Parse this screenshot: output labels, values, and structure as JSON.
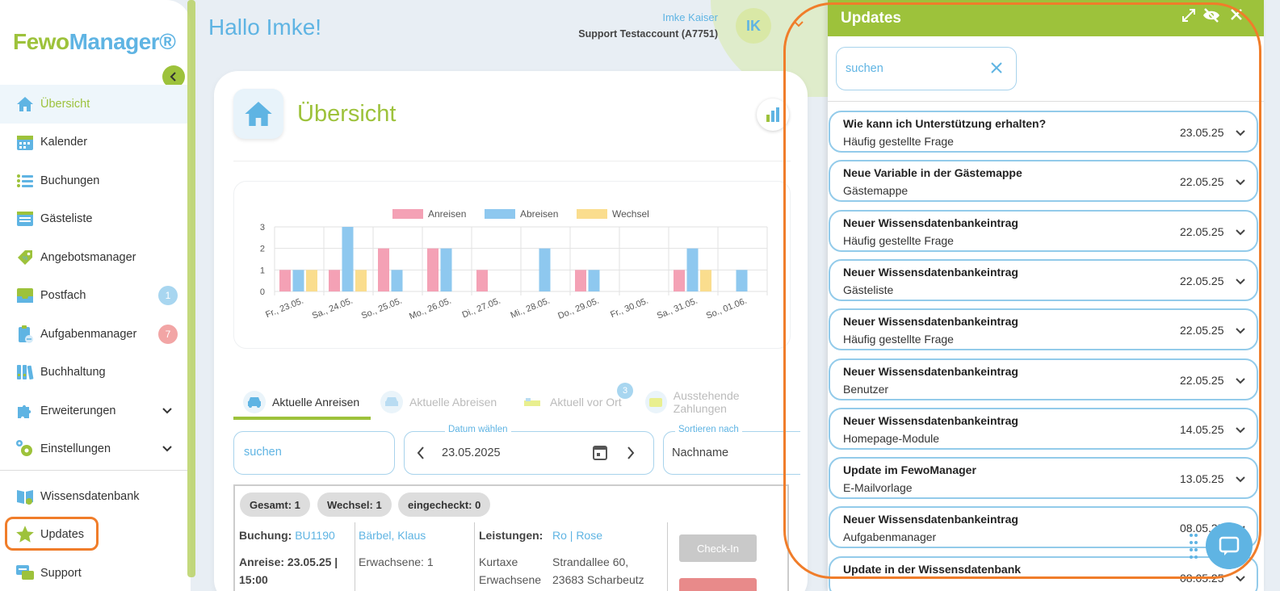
{
  "app": {
    "logo_part1": "Fewo",
    "logo_part2": "Manager®"
  },
  "sidebar": {
    "items": [
      {
        "label": "Übersicht",
        "icon": "home-icon"
      },
      {
        "label": "Kalender",
        "icon": "calendar-icon"
      },
      {
        "label": "Buchungen",
        "icon": "list-icon"
      },
      {
        "label": "Gästeliste",
        "icon": "guestlist-icon"
      },
      {
        "label": "Angebotsmanager",
        "icon": "tag-icon"
      },
      {
        "label": "Postfach",
        "icon": "inbox-icon",
        "badge": "1",
        "badge_color": "#a8d6f0"
      },
      {
        "label": "Aufgabenmanager",
        "icon": "clipboard-icon",
        "badge": "7",
        "badge_color": "#f2a5a5"
      },
      {
        "label": "Buchhaltung",
        "icon": "binders-icon"
      },
      {
        "label": "Erweiterungen",
        "icon": "puzzle-icon"
      },
      {
        "label": "Einstellungen",
        "icon": "gears-icon"
      },
      {
        "label": "Wissensdatenbank",
        "icon": "book-icon"
      },
      {
        "label": "Updates",
        "icon": "star-icon"
      },
      {
        "label": "Support",
        "icon": "chat-icon"
      }
    ]
  },
  "header": {
    "greeting": "Hallo Imke!",
    "user_name": "Imke Kaiser",
    "account": "Support Testaccount (A7751)",
    "avatar_initials": "IK"
  },
  "main": {
    "title": "Übersicht",
    "tabs": [
      {
        "label": "Aktuelle Anreisen"
      },
      {
        "label": "Aktuelle Abreisen"
      },
      {
        "label": "Aktuell vor Ort",
        "badge": "3"
      },
      {
        "label": "Ausstehende Zahlungen"
      }
    ],
    "search_placeholder": "suchen",
    "date_label": "Datum wählen",
    "date_value": "23.05.2025",
    "sort_label": "Sortieren nach",
    "sort_value": "Nachname",
    "chips": [
      "Gesamt: 1",
      "Wechsel: 1",
      "eingecheckt: 0"
    ],
    "row": {
      "booking_label": "Buchung:",
      "booking_id": "BU1190",
      "arrival": "Anreise: 23.05.25 |",
      "arrival_time": "15:00",
      "guest_name": "Bärbel, Klaus",
      "adults": "Erwachsene: 1",
      "services_label": "Leistungen:",
      "services_list": "Kurtaxe",
      "services_list2": "Erwachsene",
      "property": "Ro | Rose",
      "address1": "Strandallee 60,",
      "address2": "23683 Scharbeutz",
      "checkin_label": "Check-In"
    }
  },
  "chart_data": {
    "type": "bar",
    "categories": [
      "Fr., 23.05.",
      "Sa., 24.05.",
      "So., 25.05.",
      "Mo., 26.05.",
      "Di., 27.05.",
      "Mi., 28.05.",
      "Do., 29.05.",
      "Fr., 30.05.",
      "Sa., 31.05.",
      "So., 01.06."
    ],
    "series": [
      {
        "name": "Anreisen",
        "color": "#f4a1b5",
        "values": [
          1,
          1,
          2,
          2,
          1,
          0,
          1,
          0,
          1,
          0
        ]
      },
      {
        "name": "Abreisen",
        "color": "#8ec8ef",
        "values": [
          1,
          3,
          1,
          2,
          0,
          2,
          1,
          0,
          2,
          1
        ]
      },
      {
        "name": "Wechsel",
        "color": "#fadd8e",
        "values": [
          1,
          1,
          0,
          0,
          0,
          0,
          0,
          0,
          1,
          0
        ]
      }
    ],
    "ylim": [
      0,
      3
    ],
    "yticks": [
      "0",
      "1",
      "2",
      "3"
    ],
    "grid": true,
    "legend": "top"
  },
  "updates": {
    "title": "Updates",
    "search_placeholder": "suchen",
    "items": [
      {
        "title": "Wie kann ich Unterstützung erhalten?",
        "category": "Häufig gestellte Frage",
        "date": "23.05.25"
      },
      {
        "title": "Neue Variable in der Gästemappe",
        "category": "Gästemappe",
        "date": "22.05.25"
      },
      {
        "title": "Neuer Wissensdatenbankeintrag",
        "category": "Häufig gestellte Frage",
        "date": "22.05.25"
      },
      {
        "title": "Neuer Wissensdatenbankeintrag",
        "category": "Gästeliste",
        "date": "22.05.25"
      },
      {
        "title": "Neuer Wissensdatenbankeintrag",
        "category": "Häufig gestellte Frage",
        "date": "22.05.25"
      },
      {
        "title": "Neuer Wissensdatenbankeintrag",
        "category": "Benutzer",
        "date": "22.05.25"
      },
      {
        "title": "Neuer Wissensdatenbankeintrag",
        "category": "Homepage-Module",
        "date": "14.05.25"
      },
      {
        "title": "Update im FewoManager",
        "category": "E-Mailvorlage",
        "date": "13.05.25"
      },
      {
        "title": "Neuer Wissensdatenbankeintrag",
        "category": "Aufgabenmanager",
        "date": "08.05.25"
      },
      {
        "title": "Update in der Wissensdatenbank",
        "category": "",
        "date": "08.05.25"
      }
    ]
  }
}
